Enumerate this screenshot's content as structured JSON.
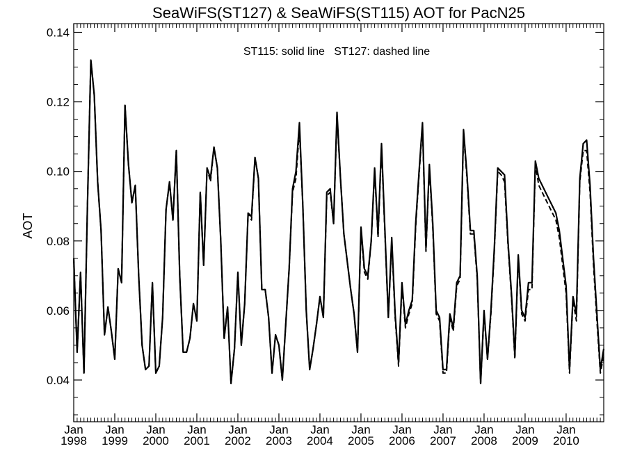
{
  "chart_data": {
    "type": "line",
    "title": "SeaWiFS(ST127) & SeaWiFS(ST115)  AOT for PacN25",
    "annotation": "ST115: solid line   ST127: dashed line",
    "ylabel": "AOT",
    "xlabel": "",
    "ylim": [
      0.028,
      0.1425
    ],
    "xlim": [
      "1998-01",
      "2010-12"
    ],
    "y_ticks": [
      "0.04",
      "0.06",
      "0.08",
      "0.10",
      "0.12",
      "0.14"
    ],
    "x_ticks": [
      {
        "month": "Jan",
        "year": "1998"
      },
      {
        "month": "Jan",
        "year": "1999"
      },
      {
        "month": "Jan",
        "year": "2000"
      },
      {
        "month": "Jan",
        "year": "2001"
      },
      {
        "month": "Jan",
        "year": "2002"
      },
      {
        "month": "Jan",
        "year": "2003"
      },
      {
        "month": "Jan",
        "year": "2004"
      },
      {
        "month": "Jan",
        "year": "2005"
      },
      {
        "month": "Jan",
        "year": "2006"
      },
      {
        "month": "Jan",
        "year": "2007"
      },
      {
        "month": "Jan",
        "year": "2008"
      },
      {
        "month": "Jan",
        "year": "2009"
      },
      {
        "month": "Jan",
        "year": "2010"
      }
    ],
    "grid": false,
    "series": [
      {
        "style": "solid",
        "x": [
          "1998-01",
          "1998-02",
          "1998-03",
          "1998-04",
          "1998-05",
          "1998-06",
          "1998-07",
          "1998-08",
          "1998-09",
          "1998-10",
          "1998-11",
          "1998-12",
          "1999-01",
          "1999-02",
          "1999-03",
          "1999-04",
          "1999-05",
          "1999-06",
          "1999-07",
          "1999-08",
          "1999-09",
          "1999-10",
          "1999-11",
          "1999-12",
          "2000-01",
          "2000-02",
          "2000-03",
          "2000-04",
          "2000-05",
          "2000-06",
          "2000-07",
          "2000-08",
          "2000-09",
          "2000-10",
          "2000-11",
          "2000-12",
          "2001-01",
          "2001-02",
          "2001-03",
          "2001-04",
          "2001-05",
          "2001-06",
          "2001-07",
          "2001-08",
          "2001-09",
          "2001-10",
          "2001-11",
          "2001-12",
          "2002-01",
          "2002-02",
          "2002-03",
          "2002-04",
          "2002-05",
          "2002-06",
          "2002-07",
          "2002-08",
          "2002-09",
          "2002-10",
          "2002-11",
          "2002-12",
          "2003-01",
          "2003-02",
          "2003-03",
          "2003-04",
          "2003-05",
          "2003-06",
          "2003-07",
          "2003-08",
          "2003-09",
          "2003-10",
          "2003-11",
          "2003-12",
          "2004-01",
          "2004-02",
          "2004-03",
          "2004-04",
          "2004-05",
          "2004-06",
          "2004-07",
          "2004-08",
          "2004-09",
          "2004-10",
          "2004-11",
          "2004-12",
          "2005-01",
          "2005-02",
          "2005-03",
          "2005-04",
          "2005-05",
          "2005-06",
          "2005-07",
          "2005-08",
          "2005-09",
          "2005-10",
          "2005-11",
          "2005-12",
          "2006-01",
          "2006-02",
          "2006-03",
          "2006-04",
          "2006-05",
          "2006-06",
          "2006-07",
          "2006-08",
          "2006-09",
          "2006-10",
          "2006-11",
          "2006-12",
          "2007-01",
          "2007-02",
          "2007-03",
          "2007-04",
          "2007-05",
          "2007-06",
          "2007-07",
          "2007-08",
          "2007-09",
          "2007-10",
          "2007-11",
          "2007-12",
          "2008-01",
          "2008-02",
          "2008-03",
          "2008-04",
          "2008-05",
          "2008-06",
          "2008-07",
          "2008-08",
          "2008-09",
          "2008-10",
          "2008-11",
          "2008-12",
          "2009-01",
          "2009-02",
          "2009-03",
          "2009-04",
          "2009-05",
          "2009-06",
          "2009-07",
          "2009-08",
          "2009-09",
          "2009-10",
          "2009-11",
          "2009-12",
          "2010-01",
          "2010-02",
          "2010-03",
          "2010-04",
          "2010-05",
          "2010-06",
          "2010-07",
          "2010-08",
          "2010-09",
          "2010-10",
          "2010-11",
          "2010-12"
        ],
        "values": [
          0.075,
          0.048,
          0.071,
          0.042,
          0.09,
          0.132,
          0.122,
          0.097,
          0.083,
          0.053,
          0.061,
          0.054,
          0.046,
          0.072,
          0.068,
          0.119,
          0.102,
          0.091,
          0.096,
          0.07,
          0.05,
          0.043,
          0.044,
          0.068,
          0.042,
          0.044,
          0.058,
          0.089,
          0.097,
          0.086,
          0.106,
          0.07,
          0.048,
          0.048,
          0.052,
          0.062,
          0.057,
          0.094,
          0.073,
          0.101,
          0.098,
          0.107,
          0.101,
          0.08,
          0.052,
          0.061,
          0.039,
          0.049,
          0.071,
          0.05,
          0.062,
          0.088,
          0.087,
          0.104,
          0.098,
          0.066,
          0.066,
          0.058,
          0.042,
          0.053,
          0.05,
          0.04,
          0.056,
          0.072,
          0.095,
          0.1,
          0.114,
          0.09,
          0.06,
          0.043,
          0.049,
          0.056,
          0.064,
          0.058,
          0.094,
          0.095,
          0.085,
          0.117,
          0.098,
          0.082,
          0.074,
          0.066,
          0.059,
          0.048,
          0.084,
          0.072,
          0.07,
          0.08,
          0.101,
          0.082,
          0.108,
          0.083,
          0.058,
          0.081,
          0.059,
          0.045,
          0.068,
          0.056,
          0.06,
          0.063,
          0.085,
          0.1,
          0.114,
          0.078,
          0.102,
          0.085,
          0.06,
          0.058,
          0.043,
          0.043,
          0.059,
          0.055,
          0.068,
          0.07,
          0.112,
          0.099,
          0.083,
          0.083,
          0.07,
          0.039,
          0.06,
          0.046,
          0.06,
          0.078,
          0.101,
          0.1,
          0.099,
          0.08,
          0.065,
          0.047,
          0.076,
          0.06,
          0.058,
          0.068,
          0.068,
          0.103,
          0.098,
          0.096,
          0.094,
          0.092,
          0.09,
          0.088,
          0.083,
          0.075,
          0.067,
          0.043,
          0.064,
          0.059,
          0.098,
          0.108,
          0.109,
          0.096,
          0.075,
          0.059,
          0.043,
          0.049
        ]
      },
      {
        "style": "dashed",
        "x": [
          "1998-01",
          "1998-02",
          "1998-03",
          "1998-04",
          "1998-05",
          "1998-06",
          "1998-07",
          "1998-08",
          "1998-09",
          "1998-10",
          "1998-11",
          "1998-12",
          "1999-01",
          "1999-02",
          "1999-03",
          "1999-04",
          "1999-05",
          "1999-06",
          "1999-07",
          "1999-08",
          "1999-09",
          "1999-10",
          "1999-11",
          "1999-12",
          "2000-01",
          "2000-02",
          "2000-03",
          "2000-04",
          "2000-05",
          "2000-06",
          "2000-07",
          "2000-08",
          "2000-09",
          "2000-10",
          "2000-11",
          "2000-12",
          "2001-01",
          "2001-02",
          "2001-03",
          "2001-04",
          "2001-05",
          "2001-06",
          "2001-07",
          "2001-08",
          "2001-09",
          "2001-10",
          "2001-11",
          "2001-12",
          "2002-01",
          "2002-02",
          "2002-03",
          "2002-04",
          "2002-05",
          "2002-06",
          "2002-07",
          "2002-08",
          "2002-09",
          "2002-10",
          "2002-11",
          "2002-12",
          "2003-01",
          "2003-02",
          "2003-03",
          "2003-04",
          "2003-05",
          "2003-06",
          "2003-07",
          "2003-08",
          "2003-09",
          "2003-10",
          "2003-11",
          "2003-12",
          "2004-01",
          "2004-02",
          "2004-03",
          "2004-04",
          "2004-05",
          "2004-06",
          "2004-07",
          "2004-08",
          "2004-09",
          "2004-10",
          "2004-11",
          "2004-12",
          "2005-01",
          "2005-02",
          "2005-03",
          "2005-04",
          "2005-05",
          "2005-06",
          "2005-07",
          "2005-08",
          "2005-09",
          "2005-10",
          "2005-11",
          "2005-12",
          "2006-01",
          "2006-02",
          "2006-03",
          "2006-04",
          "2006-05",
          "2006-06",
          "2006-07",
          "2006-08",
          "2006-09",
          "2006-10",
          "2006-11",
          "2006-12",
          "2007-01",
          "2007-02",
          "2007-03",
          "2007-04",
          "2007-05",
          "2007-06",
          "2007-07",
          "2007-08",
          "2007-09",
          "2007-10",
          "2007-11",
          "2007-12",
          "2008-01",
          "2008-02",
          "2008-03",
          "2008-04",
          "2008-05",
          "2008-06",
          "2008-07",
          "2008-08",
          "2008-09",
          "2008-10",
          "2008-11",
          "2008-12",
          "2009-01",
          "2009-02",
          "2009-03",
          "2009-04",
          "2009-05",
          "2009-06",
          "2009-07",
          "2009-08",
          "2009-09",
          "2009-10",
          "2009-11",
          "2009-12",
          "2010-01",
          "2010-02",
          "2010-03",
          "2010-04",
          "2010-05",
          "2010-06",
          "2010-07",
          "2010-08",
          "2010-09",
          "2010-10",
          "2010-11",
          "2010-12"
        ],
        "values": [
          0.075,
          0.048,
          0.071,
          0.042,
          0.09,
          0.132,
          0.122,
          0.097,
          0.083,
          0.053,
          0.061,
          0.054,
          0.046,
          0.072,
          0.068,
          0.119,
          0.102,
          0.091,
          0.096,
          0.07,
          0.05,
          0.043,
          0.044,
          0.068,
          0.042,
          0.044,
          0.058,
          0.089,
          0.097,
          0.086,
          0.106,
          0.07,
          0.048,
          0.048,
          0.052,
          0.062,
          0.057,
          0.094,
          0.073,
          0.101,
          0.097,
          0.107,
          0.101,
          0.08,
          0.052,
          0.061,
          0.039,
          0.049,
          0.071,
          0.05,
          0.062,
          0.088,
          0.086,
          0.104,
          0.098,
          0.066,
          0.066,
          0.058,
          0.042,
          0.053,
          0.05,
          0.04,
          0.056,
          0.072,
          0.094,
          0.098,
          0.112,
          0.09,
          0.06,
          0.043,
          0.049,
          0.056,
          0.064,
          0.058,
          0.093,
          0.094,
          0.085,
          0.116,
          0.098,
          0.082,
          0.074,
          0.066,
          0.059,
          0.048,
          0.083,
          0.071,
          0.069,
          0.08,
          0.1,
          0.081,
          0.107,
          0.082,
          0.058,
          0.08,
          0.058,
          0.044,
          0.067,
          0.055,
          0.059,
          0.062,
          0.084,
          0.099,
          0.113,
          0.077,
          0.101,
          0.084,
          0.059,
          0.057,
          0.042,
          0.042,
          0.058,
          0.054,
          0.067,
          0.069,
          0.111,
          0.098,
          0.082,
          0.082,
          0.069,
          0.039,
          0.059,
          0.046,
          0.059,
          0.077,
          0.1,
          0.099,
          0.097,
          0.079,
          0.064,
          0.046,
          0.075,
          0.059,
          0.057,
          0.066,
          0.066,
          0.102,
          0.096,
          0.094,
          0.092,
          0.09,
          0.088,
          0.086,
          0.081,
          0.073,
          0.065,
          0.042,
          0.063,
          0.057,
          0.097,
          0.106,
          0.106,
          0.094,
          0.073,
          0.057,
          0.042,
          0.047
        ]
      }
    ]
  }
}
